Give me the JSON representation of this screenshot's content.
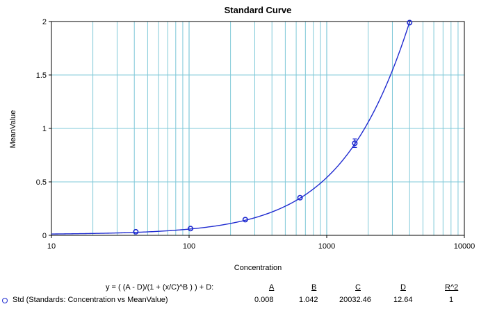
{
  "chart_data": {
    "type": "scatter",
    "title": "Standard Curve",
    "xlabel": "Concentration",
    "ylabel": "MeanValue",
    "x_scale": "log",
    "xlim": [
      10,
      10000
    ],
    "ylim": [
      0,
      2
    ],
    "x_ticks": [
      10,
      100,
      1000,
      10000
    ],
    "x_tick_labels": [
      "10",
      "100",
      "1000",
      "10000"
    ],
    "y_ticks": [
      0,
      0.5,
      1,
      1.5,
      2
    ],
    "y_tick_labels": [
      "0",
      "0.5",
      "1",
      "1.5",
      "2"
    ],
    "grid": true,
    "series": [
      {
        "name": "Std (Standards: Concentration vs MeanValue)",
        "x": [
          41,
          102.4,
          256,
          640,
          1600,
          4000
        ],
        "y": [
          0.033,
          0.063,
          0.147,
          0.352,
          0.862,
          1.99
        ],
        "error": [
          0,
          0,
          0,
          0,
          0.04,
          0
        ]
      }
    ],
    "fit": {
      "equation": "y = ( (A - D)/(1 + (x/C)^B ) ) + D:",
      "headers": [
        "A",
        "B",
        "C",
        "D",
        "R^2"
      ],
      "values": [
        "0.008",
        "1.042",
        "20032.46",
        "12.64",
        "1"
      ],
      "params": {
        "A": 0.008,
        "B": 1.042,
        "C": 20032.46,
        "D": 12.64
      }
    },
    "colors": {
      "grid": "#7fc8d8",
      "series": "#1f2bd0",
      "frame": "#000000"
    }
  }
}
